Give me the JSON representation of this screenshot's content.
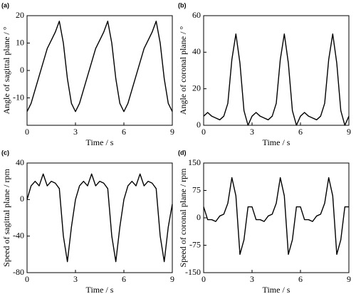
{
  "chart_data": [
    {
      "type": "line",
      "panel_label": "(a)",
      "xlabel": "Time  /  s",
      "ylabel": "Angle of sagittal plane  /  °",
      "x": [
        0,
        0.25,
        0.5,
        0.75,
        1,
        1.25,
        1.5,
        1.75,
        2,
        2.25,
        2.5,
        2.75,
        3,
        3.25,
        3.5,
        3.75,
        4,
        4.25,
        4.5,
        4.75,
        5,
        5.25,
        5.5,
        5.75,
        6,
        6.25,
        6.5,
        6.75,
        7,
        7.25,
        7.5,
        7.75,
        8,
        8.25,
        8.5,
        8.75,
        9
      ],
      "values": [
        -15,
        -12,
        -7,
        -2,
        3,
        8,
        11,
        14,
        18,
        10,
        -3,
        -12,
        -15,
        -12,
        -7,
        -2,
        3,
        8,
        11,
        14,
        18,
        10,
        -3,
        -12,
        -15,
        -12,
        -7,
        -2,
        3,
        8,
        11,
        14,
        18,
        10,
        -3,
        -12,
        -15
      ],
      "color": "#000000",
      "xlim": [
        0,
        9
      ],
      "xticks": [
        0,
        3,
        6,
        9
      ],
      "ylim": [
        -20,
        20
      ],
      "yticks": [
        -10,
        0,
        10,
        20
      ]
    },
    {
      "type": "line",
      "panel_label": "(b)",
      "xlabel": "Time  /  s",
      "ylabel": "Angle of coronal plane  /  °",
      "x": [
        0,
        0.25,
        0.5,
        0.75,
        1,
        1.25,
        1.5,
        1.75,
        2,
        2.25,
        2.5,
        2.75,
        3,
        3.25,
        3.5,
        3.75,
        4,
        4.25,
        4.5,
        4.75,
        5,
        5.25,
        5.5,
        5.75,
        6,
        6.25,
        6.5,
        6.75,
        7,
        7.25,
        7.5,
        7.75,
        8,
        8.25,
        8.5,
        8.75,
        9
      ],
      "values": [
        5,
        7,
        5,
        4,
        3,
        5,
        12,
        36,
        50,
        34,
        8,
        0,
        5,
        7,
        5,
        4,
        3,
        5,
        12,
        36,
        50,
        34,
        8,
        0,
        5,
        7,
        5,
        4,
        3,
        5,
        12,
        36,
        50,
        34,
        8,
        0,
        5
      ],
      "color": "#000000",
      "xlim": [
        0,
        9
      ],
      "xticks": [
        0,
        3,
        6,
        9
      ],
      "ylim": [
        0,
        60
      ],
      "yticks": [
        0,
        20,
        40,
        60
      ]
    },
    {
      "type": "line",
      "panel_label": "(c)",
      "xlabel": "Time  /  s",
      "ylabel": "Speed of  sagittal plane  /  rpm",
      "x": [
        0,
        0.25,
        0.5,
        0.75,
        1,
        1.25,
        1.5,
        1.75,
        2,
        2.25,
        2.5,
        2.75,
        3,
        3.25,
        3.5,
        3.75,
        4,
        4.25,
        4.5,
        4.75,
        5,
        5.25,
        5.5,
        5.75,
        6,
        6.25,
        6.5,
        6.75,
        7,
        7.25,
        7.5,
        7.75,
        8,
        8.25,
        8.5,
        8.75,
        9
      ],
      "values": [
        0,
        15,
        20,
        15,
        28,
        15,
        20,
        18,
        12,
        -40,
        -68,
        -30,
        0,
        15,
        20,
        15,
        28,
        15,
        20,
        18,
        12,
        -40,
        -68,
        -30,
        0,
        15,
        20,
        15,
        28,
        15,
        20,
        18,
        12,
        -40,
        -68,
        -30,
        -5
      ],
      "color": "#000000",
      "xlim": [
        0,
        9
      ],
      "xticks": [
        0,
        3,
        6,
        9
      ],
      "ylim": [
        -80,
        40
      ],
      "yticks": [
        -80,
        -40,
        0,
        40
      ]
    },
    {
      "type": "line",
      "panel_label": "(d)",
      "xlabel": "Time  /  s",
      "ylabel": "Speed of coronal plane  /  rpm",
      "x": [
        0,
        0.25,
        0.5,
        0.75,
        1,
        1.25,
        1.5,
        1.75,
        2,
        2.25,
        2.5,
        2.75,
        3,
        3.25,
        3.5,
        3.75,
        4,
        4.25,
        4.5,
        4.75,
        5,
        5.25,
        5.5,
        5.75,
        6,
        6.25,
        6.5,
        6.75,
        7,
        7.25,
        7.5,
        7.75,
        8,
        8.25,
        8.5,
        8.75,
        9
      ],
      "values": [
        30,
        -5,
        -5,
        -10,
        5,
        10,
        40,
        110,
        60,
        -100,
        -60,
        30,
        30,
        -5,
        -5,
        -10,
        5,
        10,
        40,
        110,
        60,
        -100,
        -60,
        30,
        30,
        -5,
        -5,
        -10,
        5,
        10,
        40,
        110,
        60,
        -100,
        -60,
        30,
        30
      ],
      "color": "#000000",
      "xlim": [
        0,
        9
      ],
      "xticks": [
        0,
        3,
        6,
        9
      ],
      "ylim": [
        -150,
        150
      ],
      "yticks": [
        -150,
        -75,
        0,
        75,
        150
      ]
    }
  ]
}
